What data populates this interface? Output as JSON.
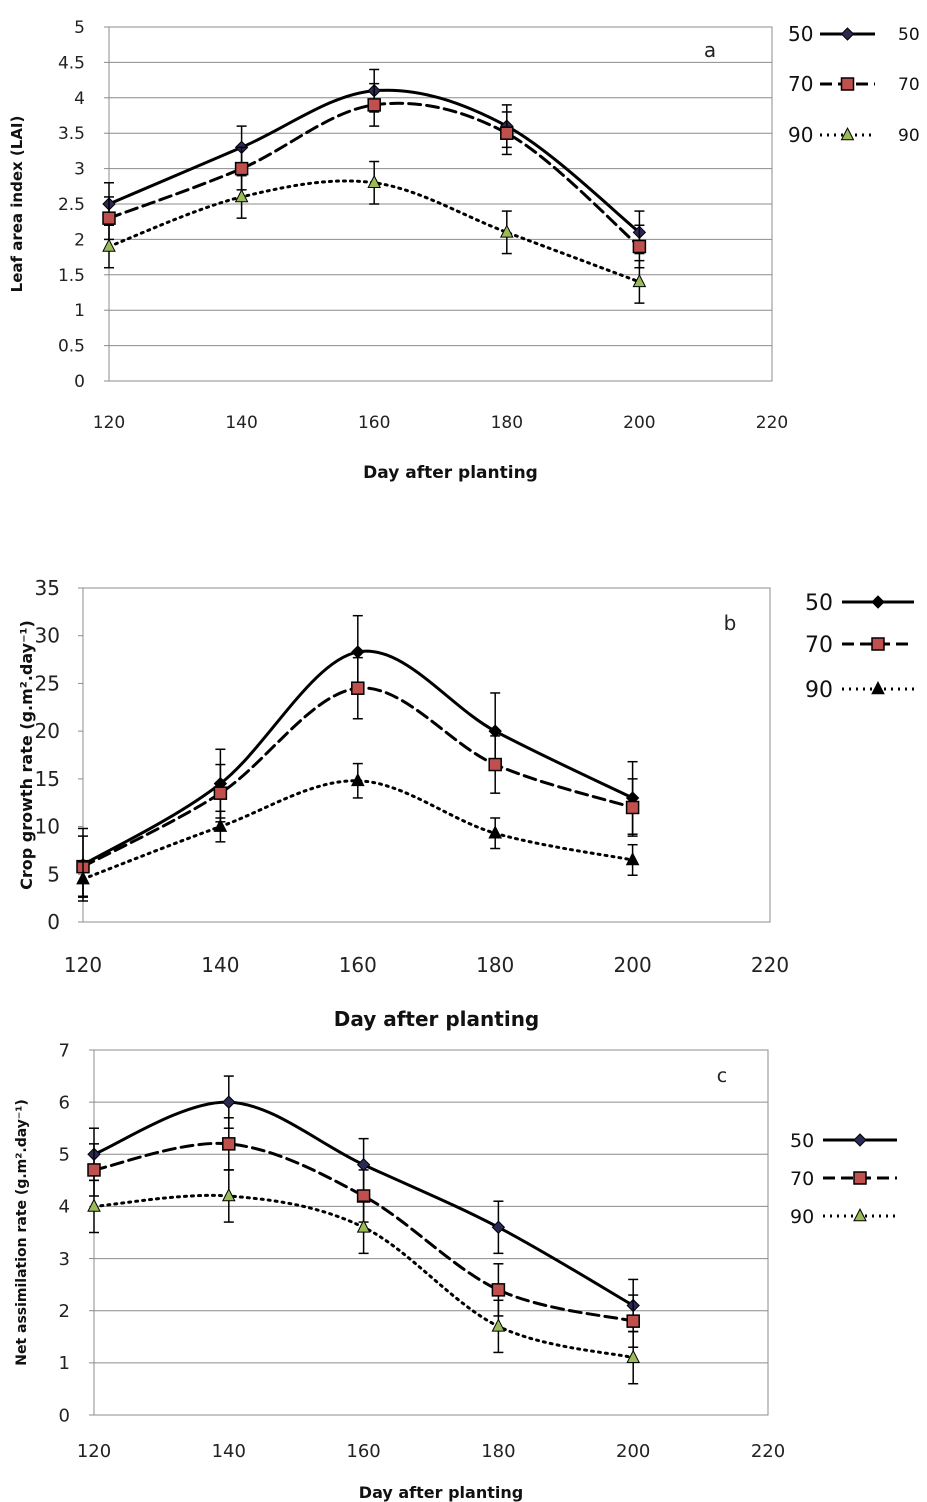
{
  "chart_data": [
    {
      "type": "line",
      "panel_label": "a",
      "x": [
        120,
        140,
        160,
        180,
        200
      ],
      "xlim": [
        120,
        220
      ],
      "xticks": [
        120,
        140,
        160,
        180,
        200,
        220
      ],
      "ylim": [
        0,
        5
      ],
      "yticks": [
        0,
        0.5,
        1,
        1.5,
        2,
        2.5,
        3,
        3.5,
        4,
        4.5,
        5
      ],
      "xlabel": "Day after planting",
      "ylabel": "Leaf area index (LAI)",
      "grid": "horizontal",
      "legend_position": "right",
      "series": [
        {
          "name": "50",
          "legend_label": "50",
          "values": [
            2.5,
            3.3,
            4.1,
            3.6,
            2.1
          ],
          "errors": [
            0.3,
            0.3,
            0.3,
            0.3,
            0.3
          ],
          "style": "solid",
          "marker": "diamond",
          "color": "#000000",
          "marker_color": "#2a2a55"
        },
        {
          "name": "70",
          "legend_label": "70",
          "values": [
            2.3,
            3.0,
            3.9,
            3.5,
            1.9
          ],
          "errors": [
            0.3,
            0.3,
            0.3,
            0.3,
            0.3
          ],
          "style": "dashed",
          "marker": "square",
          "color": "#000000",
          "marker_color": "#c0504d"
        },
        {
          "name": "90",
          "legend_label": "90",
          "values": [
            1.9,
            2.6,
            2.8,
            2.1,
            1.4
          ],
          "errors": [
            0.3,
            0.3,
            0.3,
            0.3,
            0.3
          ],
          "style": "dotted",
          "marker": "triangle",
          "color": "#000000",
          "marker_color": "#9bbb59"
        }
      ]
    },
    {
      "type": "line",
      "panel_label": "b",
      "x": [
        120,
        140,
        160,
        180,
        200
      ],
      "xlim": [
        120,
        220
      ],
      "xticks": [
        120,
        140,
        160,
        180,
        200,
        220
      ],
      "ylim": [
        0,
        35
      ],
      "yticks": [
        0,
        5,
        10,
        15,
        20,
        25,
        30,
        35
      ],
      "xlabel": "Day after planting",
      "ylabel": "Crop growth rate (g.m².day⁻¹)",
      "grid": "none",
      "legend_position": "right",
      "series": [
        {
          "name": "50",
          "values": [
            6.0,
            14.5,
            28.3,
            20.0,
            13.0
          ],
          "errors": [
            3.8,
            3.6,
            3.8,
            4.0,
            3.8
          ],
          "style": "solid",
          "marker": "diamond",
          "color": "#000000",
          "marker_color": "#000000"
        },
        {
          "name": "70",
          "values": [
            5.8,
            13.5,
            24.5,
            16.5,
            12.0
          ],
          "errors": [
            3.2,
            3.0,
            3.2,
            3.0,
            3.0
          ],
          "style": "dashed",
          "marker": "square",
          "color": "#000000",
          "marker_color": "#c0504d"
        },
        {
          "name": "90",
          "values": [
            4.5,
            10.0,
            14.8,
            9.3,
            6.5
          ],
          "errors": [
            1.8,
            1.6,
            1.8,
            1.6,
            1.6
          ],
          "style": "dotted",
          "marker": "triangle",
          "color": "#000000",
          "marker_color": "#000000"
        }
      ]
    },
    {
      "type": "line",
      "panel_label": "c",
      "x": [
        120,
        140,
        160,
        180,
        200
      ],
      "xlim": [
        120,
        220
      ],
      "xticks": [
        120,
        140,
        160,
        180,
        200,
        220
      ],
      "ylim": [
        0,
        7
      ],
      "yticks": [
        0,
        1,
        2,
        3,
        4,
        5,
        6,
        7
      ],
      "xlabel": "Day after planting",
      "ylabel": "Net assimilation rate (g.m².day⁻¹)",
      "grid": "horizontal",
      "legend_position": "right",
      "series": [
        {
          "name": "50",
          "values": [
            5.0,
            6.0,
            4.8,
            3.6,
            2.1
          ],
          "errors": [
            0.5,
            0.5,
            0.5,
            0.5,
            0.5
          ],
          "style": "solid",
          "marker": "diamond",
          "color": "#000000",
          "marker_color": "#2a2a55"
        },
        {
          "name": "70",
          "values": [
            4.7,
            5.2,
            4.2,
            2.4,
            1.8
          ],
          "errors": [
            0.5,
            0.5,
            0.5,
            0.5,
            0.5
          ],
          "style": "dashed",
          "marker": "square",
          "color": "#000000",
          "marker_color": "#c0504d"
        },
        {
          "name": "90",
          "values": [
            4.0,
            4.2,
            3.6,
            1.7,
            1.1
          ],
          "errors": [
            0.5,
            0.5,
            0.5,
            0.5,
            0.5
          ],
          "style": "dotted",
          "marker": "triangle",
          "color": "#000000",
          "marker_color": "#9bbb59"
        }
      ]
    }
  ]
}
